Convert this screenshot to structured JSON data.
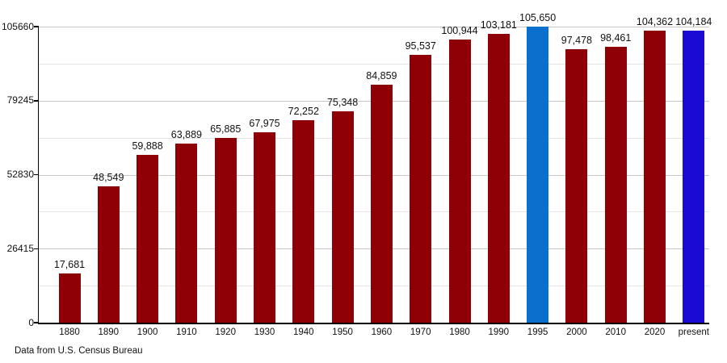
{
  "chart_data": {
    "type": "bar",
    "title": "",
    "xlabel": "",
    "ylabel": "",
    "categories": [
      "1880",
      "1890",
      "1900",
      "1910",
      "1920",
      "1930",
      "1940",
      "1950",
      "1960",
      "1970",
      "1980",
      "1990",
      "1995",
      "2000",
      "2010",
      "2020",
      "present"
    ],
    "values": [
      17681,
      48549,
      59888,
      63889,
      65885,
      67975,
      72252,
      75348,
      84859,
      95537,
      100944,
      103181,
      105650,
      97478,
      98461,
      104362,
      104184
    ],
    "value_labels": [
      "17,681",
      "48,549",
      "59,888",
      "63,889",
      "65,885",
      "67,975",
      "72,252",
      "75,348",
      "84,859",
      "95,537",
      "100,944",
      "103,181",
      "105,650",
      "97,478",
      "98,461",
      "104,362",
      "104,184"
    ],
    "bar_colors": [
      "#8e0005",
      "#8e0005",
      "#8e0005",
      "#8e0005",
      "#8e0005",
      "#8e0005",
      "#8e0005",
      "#8e0005",
      "#8e0005",
      "#8e0005",
      "#8e0005",
      "#8e0005",
      "#0a70ce",
      "#8e0005",
      "#8e0005",
      "#8e0005",
      "#1b0ad3"
    ],
    "ylim": [
      0,
      105660
    ],
    "yticks": [
      0,
      26415,
      52830,
      79245,
      105660
    ],
    "ytick_labels": [
      "0",
      "26415",
      "52830",
      "79245",
      "105660"
    ],
    "minor_ytick_values": [
      13207.5,
      39622.5,
      66037.5,
      92452.5
    ],
    "grid": true,
    "legend": "none",
    "source_note": "Data from U.S. Census Bureau",
    "palette": {
      "default_bar": "#8e0005",
      "highlight_1995_bar": "#0a70ce",
      "highlight_present_bar": "#1b0ad3",
      "major_gridline": "#c6c6c6",
      "minor_gridline": "#e4e4e4",
      "axis": "#000000",
      "text": "#111111"
    }
  }
}
